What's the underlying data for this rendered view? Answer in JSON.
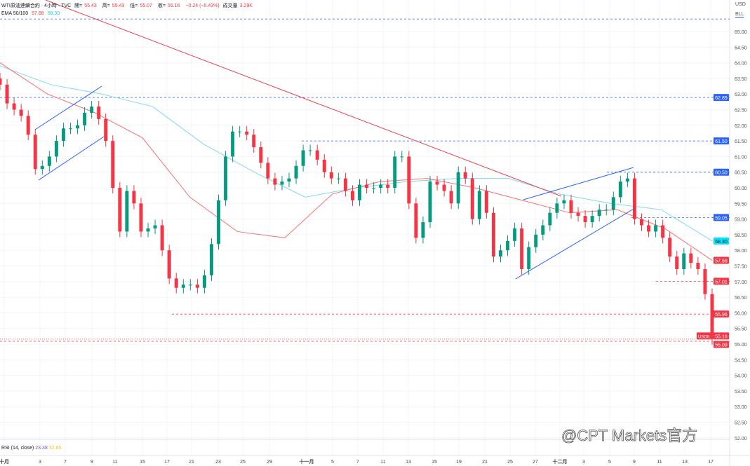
{
  "legend": {
    "symbol": "WTI原油連續合約 · 4小時 · TVC",
    "open_label": "開=",
    "open": "55.43",
    "high_label": "高=",
    "high": "55.43",
    "low_label": "低=",
    "low": "55.07",
    "close_label": "收=",
    "close": "55.16",
    "change": "−0.24 (−0.43%)",
    "volume_label": "成交量",
    "volume": "3.29K",
    "ema_label": "EMA 50/100",
    "ema50": "57.68",
    "ema100": "58.30"
  },
  "rsi": {
    "label": "RSI (14, close)",
    "value1": "23.38",
    "value2": "32.65"
  },
  "axis_unit": {
    "currency": "USD",
    "unit": "BLL"
  },
  "watermark": "@CPT Markets官方",
  "colors": {
    "up": "#089981",
    "down": "#f23645",
    "ema50": "#f7706f",
    "ema100": "#7fdbe8",
    "trend_red": "#f23645",
    "trend_blue": "#2962ff"
  },
  "chart_data": {
    "type": "candlestick",
    "title": "",
    "ylim": [
      51.8,
      65.6
    ],
    "grid": true,
    "y_ticks": [
      "65.00",
      "64.50",
      "64.00",
      "63.50",
      "63.00",
      "62.50",
      "62.00",
      "61.50",
      "61.00",
      "60.50",
      "60.00",
      "59.50",
      "59.00",
      "58.50",
      "58.00",
      "57.50",
      "57.00",
      "56.50",
      "56.00",
      "55.50",
      "55.00",
      "54.50",
      "54.00",
      "53.50",
      "53.00",
      "52.50",
      "52.00"
    ],
    "x_ticks": [
      "十月",
      "3",
      "7",
      "9",
      "11",
      "15",
      "17",
      "21",
      "23",
      "25",
      "29",
      "十一月",
      "5",
      "7",
      "11",
      "13",
      "15",
      "19",
      "21",
      "25",
      "27",
      "十二月",
      "3",
      "5",
      "9",
      "11",
      "13",
      "17"
    ],
    "close": [
      63.3,
      62.7,
      62.5,
      62.3,
      61.7,
      60.6,
      60.7,
      61.0,
      61.5,
      61.9,
      61.9,
      62.0,
      62.4,
      62.6,
      62.2,
      61.5,
      60.0,
      58.6,
      59.9,
      59.5,
      58.6,
      58.7,
      58.8,
      58.0,
      57.1,
      56.8,
      56.9,
      56.9,
      56.8,
      57.2,
      58.2,
      59.6,
      61.0,
      61.8,
      61.8,
      61.7,
      61.3,
      60.8,
      60.3,
      60.1,
      60.2,
      60.3,
      60.7,
      61.2,
      61.2,
      60.9,
      60.5,
      60.3,
      60.3,
      59.9,
      59.6,
      60.1,
      60.0,
      60.0,
      60.1,
      60.0,
      61.0,
      61.0,
      59.5,
      58.4,
      58.9,
      60.2,
      60.1,
      59.9,
      59.5,
      60.5,
      60.3,
      59.0,
      59.9,
      59.2,
      57.8,
      58.0,
      58.3,
      58.7,
      57.4,
      58.1,
      58.5,
      58.8,
      59.2,
      59.5,
      59.6,
      59.2,
      59.1,
      58.9,
      59.1,
      59.3,
      59.3,
      59.7,
      60.2,
      60.3,
      59.0,
      58.8,
      58.6,
      58.8,
      58.4,
      57.8,
      57.4,
      57.9,
      57.6,
      57.4,
      56.6,
      55.16
    ],
    "ema50": [
      64.0,
      63.0,
      62.4,
      61.6,
      59.7,
      58.6,
      58.4,
      59.8,
      60.2,
      60.3,
      60.0,
      59.6,
      59.2,
      59.3,
      58.7,
      57.68
    ],
    "ema100": [
      63.9,
      63.3,
      63.0,
      62.6,
      61.4,
      60.5,
      59.7,
      60.0,
      60.2,
      60.3,
      60.3,
      59.8,
      59.5,
      59.3,
      58.3
    ],
    "levels": [
      {
        "price": 65.4,
        "label": "",
        "color": "#2962ff"
      },
      {
        "price": 62.89,
        "label": "62.89",
        "color": "#2962ff"
      },
      {
        "price": 61.5,
        "label": "61.50",
        "color": "#2962ff"
      },
      {
        "price": 60.5,
        "label": "60.50",
        "color": "#2962ff"
      },
      {
        "price": 59.05,
        "label": "59.05",
        "color": "#2962ff"
      },
      {
        "price": 57.01,
        "label": "57.01",
        "color": "#f23645"
      },
      {
        "price": 55.96,
        "label": "55.96",
        "color": "#f23645"
      },
      {
        "price": 55.09,
        "label": "55.09",
        "color": "#f23645"
      }
    ],
    "price_tags": [
      {
        "label": "58.30",
        "price": 58.3,
        "color": "#00e5ff",
        "text": "#131722"
      },
      {
        "label": "57.68",
        "price": 57.68,
        "color": "#f23645",
        "text": "#ffffff"
      },
      {
        "label": "55.16",
        "price": 55.16,
        "color": "#f23645",
        "text": "#ffffff"
      }
    ],
    "symbol_tag": "USOIL"
  }
}
